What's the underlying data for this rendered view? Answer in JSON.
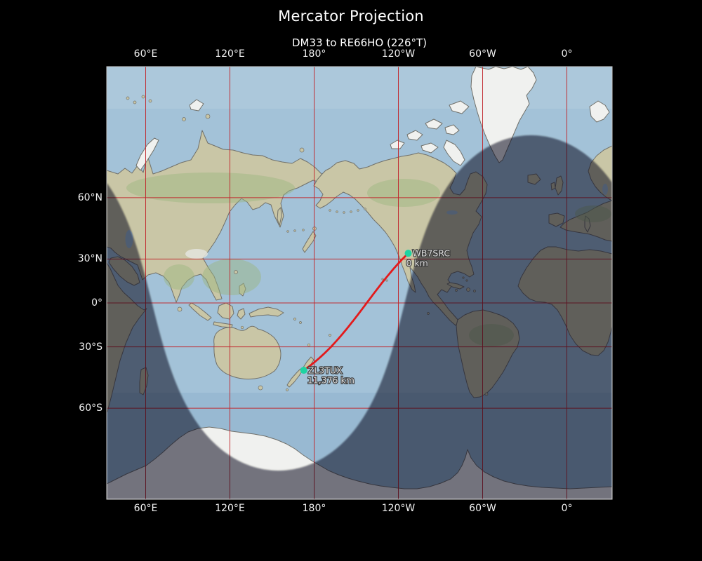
{
  "figure": {
    "title": "Mercator Projection",
    "subtitle": "DM33 to RE66HO (226°T)"
  },
  "axes": {
    "top_ticks": [
      {
        "label": "60°E",
        "lon": 60
      },
      {
        "label": "120°E",
        "lon": 120
      },
      {
        "label": "180°",
        "lon": 180
      },
      {
        "label": "120°W",
        "lon": -120
      },
      {
        "label": "60°W",
        "lon": -60
      },
      {
        "label": "0°",
        "lon": 0
      }
    ],
    "bottom_ticks": [
      {
        "label": "60°E",
        "lon": 60
      },
      {
        "label": "120°E",
        "lon": 120
      },
      {
        "label": "180°",
        "lon": 180
      },
      {
        "label": "120°W",
        "lon": -120
      },
      {
        "label": "60°W",
        "lon": -60
      },
      {
        "label": "0°",
        "lon": 0
      }
    ],
    "left_ticks": [
      {
        "label": "60°N",
        "lat": 60
      },
      {
        "label": "30°N",
        "lat": 30
      },
      {
        "label": "0°",
        "lat": 0
      },
      {
        "label": "30°S",
        "lat": -30
      },
      {
        "label": "60°S",
        "lat": -60
      }
    ]
  },
  "stations": [
    {
      "callsign": "WB7SRC",
      "distance_label": "0 km",
      "lat": 33.5,
      "lon": -113.0
    },
    {
      "callsign": "ZL3TUX",
      "distance_label": "11,376 km",
      "lat": -43.4,
      "lon": 172.63
    }
  ],
  "day_night": {
    "sun_declination_deg": 14.0,
    "noon_longitude_deg": 154.5
  },
  "colors": {
    "background": "#000000",
    "ocean": "#a3c2d8",
    "ocean_deep": "#8fb3cd",
    "land": "#c9c6a6",
    "land_green": "#9cb57e",
    "ice": "#f0f1ef",
    "coast": "#70706a",
    "grid": "#c1272d",
    "track": "#e31a1c",
    "marker": "#1ed3a2",
    "night": "rgba(6,10,16,0.52)",
    "map_label": "#dcdcdc",
    "tick_label": "#f2f2f2",
    "spine": "#c9c9c9",
    "title": "#ffffff"
  }
}
